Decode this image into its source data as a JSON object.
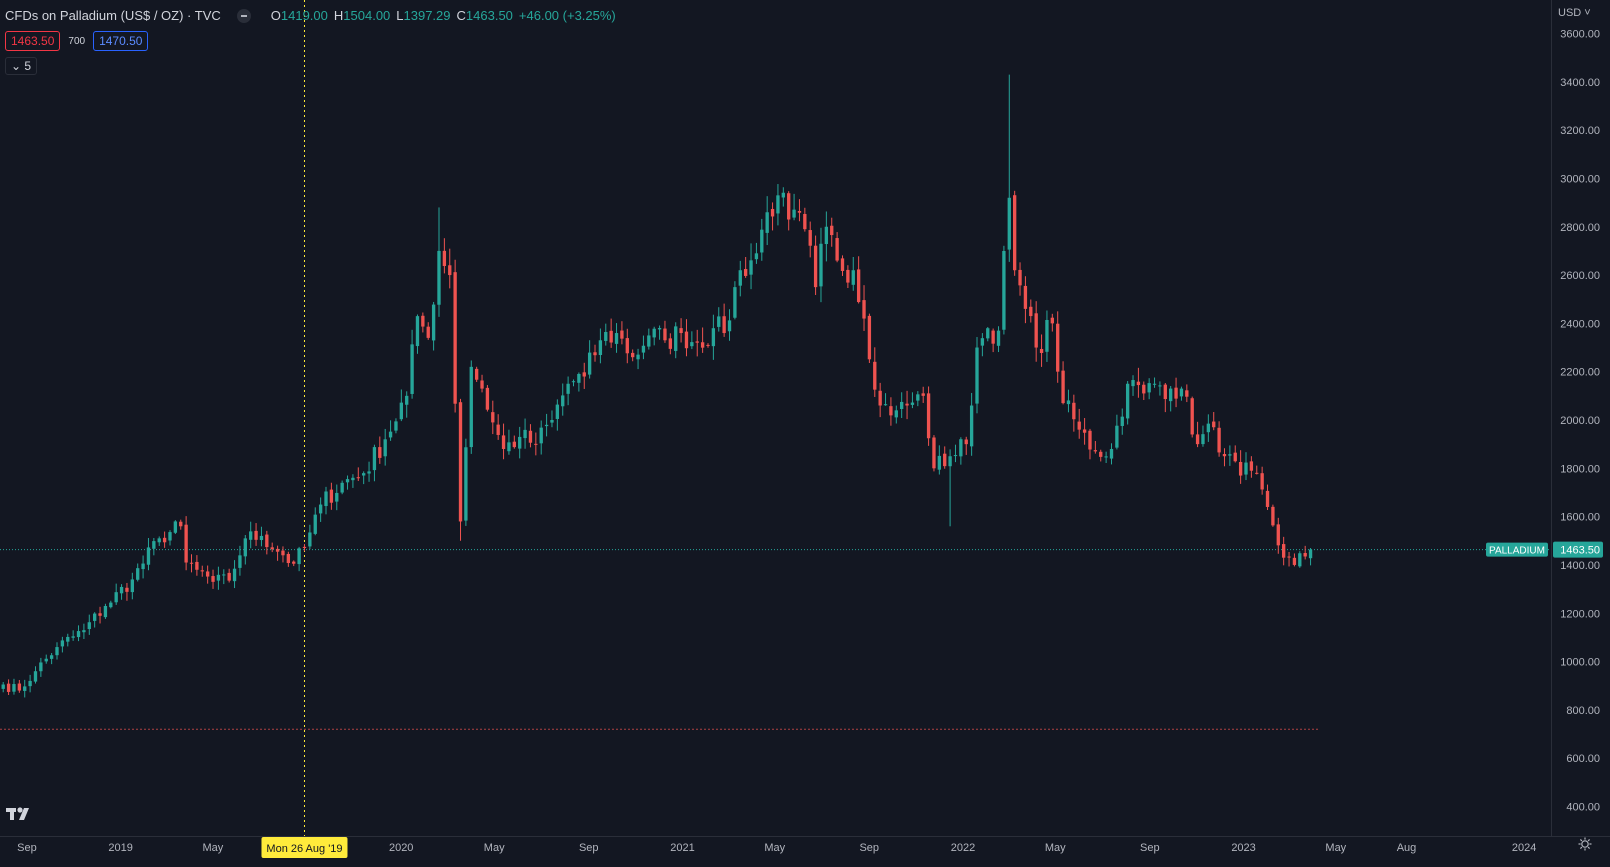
{
  "header": {
    "title": "CFDs on Palladium (US$ / OZ) · TVC",
    "ohlc": [
      {
        "key": "O",
        "value": "1419.00"
      },
      {
        "key": "H",
        "value": "1504.00"
      },
      {
        "key": "L",
        "value": "1397.29"
      },
      {
        "key": "C",
        "value": "1463.50"
      }
    ],
    "change": "+46.00 (+3.25%)",
    "sell_price": "1463.50",
    "spread": "700",
    "buy_price": "1470.50",
    "indicators_toggle": "5"
  },
  "price_axis": {
    "currency": "USD",
    "ticks": [
      "3600.00",
      "3400.00",
      "3200.00",
      "3000.00",
      "2800.00",
      "2600.00",
      "2400.00",
      "2200.00",
      "2000.00",
      "1800.00",
      "1600.00",
      "1400.00",
      "1200.00",
      "1000.00",
      "800.00",
      "600.00",
      "400.00"
    ]
  },
  "time_axis": {
    "labels": [
      "Sep",
      "2019",
      "May",
      "2020",
      "May",
      "Sep",
      "2021",
      "May",
      "Sep",
      "2022",
      "May",
      "Sep",
      "2023",
      "May",
      "Aug",
      "2024"
    ],
    "crosshair_label": "Mon 26 Aug '19"
  },
  "symbol_label": "PALLADIUM",
  "last_price_label": "1463.50",
  "colors": {
    "up": "#26a69a",
    "down": "#ef5350",
    "background": "#131722",
    "crosshair_label_bg": "#ffeb3b",
    "last_price_line": "#26a69a"
  },
  "chart_data": {
    "type": "candlestick",
    "title": "CFDs on Palladium (US$ / OZ) · TVC",
    "interval": "weekly",
    "ylim": [
      300,
      3700
    ],
    "y_ticks": [
      400,
      600,
      800,
      1000,
      1200,
      1400,
      1600,
      1800,
      2000,
      2200,
      2400,
      2600,
      2800,
      3000,
      3200,
      3400,
      3600
    ],
    "x_range": [
      "2018-07-28",
      "2024-02-05"
    ],
    "x_ticks": [
      {
        "label": "Sep",
        "date": "2018-09-01"
      },
      {
        "label": "2019",
        "date": "2019-01-01"
      },
      {
        "label": "May",
        "date": "2019-05-01"
      },
      {
        "label": "2020",
        "date": "2020-01-01"
      },
      {
        "label": "May",
        "date": "2020-05-01"
      },
      {
        "label": "Sep",
        "date": "2020-09-01"
      },
      {
        "label": "2021",
        "date": "2021-01-01"
      },
      {
        "label": "May",
        "date": "2021-05-01"
      },
      {
        "label": "Sep",
        "date": "2021-09-01"
      },
      {
        "label": "2022",
        "date": "2022-01-01"
      },
      {
        "label": "May",
        "date": "2022-05-01"
      },
      {
        "label": "Sep",
        "date": "2022-09-01"
      },
      {
        "label": "2023",
        "date": "2023-01-01"
      },
      {
        "label": "May",
        "date": "2023-05-01"
      },
      {
        "label": "Aug",
        "date": "2023-08-01"
      },
      {
        "label": "2024",
        "date": "2024-01-01"
      }
    ],
    "crosshair_date": "2019-08-26",
    "last_price": 1463.5,
    "buy_price": 1470.5,
    "alert_line": 720,
    "anchors": [
      {
        "date": "2018-07-30",
        "price": 905
      },
      {
        "date": "2018-08-20",
        "price": 880
      },
      {
        "date": "2018-09-10",
        "price": 960
      },
      {
        "date": "2018-10-08",
        "price": 1060
      },
      {
        "date": "2018-11-12",
        "price": 1130
      },
      {
        "date": "2018-12-10",
        "price": 1230
      },
      {
        "date": "2019-01-14",
        "price": 1340
      },
      {
        "date": "2019-02-18",
        "price": 1510
      },
      {
        "date": "2019-03-18",
        "price": 1560
      },
      {
        "date": "2019-03-25",
        "price": 1410
      },
      {
        "date": "2019-04-08",
        "price": 1380
      },
      {
        "date": "2019-04-29",
        "price": 1330
      },
      {
        "date": "2019-05-20",
        "price": 1335
      },
      {
        "date": "2019-06-10",
        "price": 1510
      },
      {
        "date": "2019-07-01",
        "price": 1520
      },
      {
        "date": "2019-07-29",
        "price": 1440
      },
      {
        "date": "2019-08-12",
        "price": 1405
      },
      {
        "date": "2019-08-26",
        "price": 1470
      },
      {
        "date": "2019-09-16",
        "price": 1650
      },
      {
        "date": "2019-10-14",
        "price": 1740
      },
      {
        "date": "2019-11-11",
        "price": 1780
      },
      {
        "date": "2019-12-09",
        "price": 1920
      },
      {
        "date": "2020-01-06",
        "price": 2100
      },
      {
        "date": "2020-01-20",
        "price": 2430
      },
      {
        "date": "2020-02-03",
        "price": 2340
      },
      {
        "date": "2020-02-17",
        "price": 2700
      },
      {
        "date": "2020-03-02",
        "price": 2600
      },
      {
        "date": "2020-03-16",
        "price": 1580
      },
      {
        "date": "2020-03-30",
        "price": 2220
      },
      {
        "date": "2020-04-13",
        "price": 2130
      },
      {
        "date": "2020-04-27",
        "price": 1990
      },
      {
        "date": "2020-05-11",
        "price": 1880
      },
      {
        "date": "2020-06-01",
        "price": 1930
      },
      {
        "date": "2020-06-22",
        "price": 1900
      },
      {
        "date": "2020-07-13",
        "price": 2000
      },
      {
        "date": "2020-08-03",
        "price": 2150
      },
      {
        "date": "2020-08-24",
        "price": 2180
      },
      {
        "date": "2020-09-14",
        "price": 2330
      },
      {
        "date": "2020-10-05",
        "price": 2360
      },
      {
        "date": "2020-10-26",
        "price": 2260
      },
      {
        "date": "2020-11-16",
        "price": 2350
      },
      {
        "date": "2020-12-07",
        "price": 2330
      },
      {
        "date": "2020-12-28",
        "price": 2360
      },
      {
        "date": "2021-01-18",
        "price": 2320
      },
      {
        "date": "2021-02-08",
        "price": 2380
      },
      {
        "date": "2021-02-22",
        "price": 2360
      },
      {
        "date": "2021-03-15",
        "price": 2620
      },
      {
        "date": "2021-04-05",
        "price": 2690
      },
      {
        "date": "2021-04-19",
        "price": 2860
      },
      {
        "date": "2021-05-03",
        "price": 2930
      },
      {
        "date": "2021-05-17",
        "price": 2830
      },
      {
        "date": "2021-06-07",
        "price": 2790
      },
      {
        "date": "2021-06-21",
        "price": 2550
      },
      {
        "date": "2021-07-05",
        "price": 2800
      },
      {
        "date": "2021-07-19",
        "price": 2660
      },
      {
        "date": "2021-08-09",
        "price": 2620
      },
      {
        "date": "2021-08-23",
        "price": 2420
      },
      {
        "date": "2021-09-13",
        "price": 2060
      },
      {
        "date": "2021-10-04",
        "price": 2040
      },
      {
        "date": "2021-10-18",
        "price": 2060
      },
      {
        "date": "2021-11-08",
        "price": 2100
      },
      {
        "date": "2021-11-22",
        "price": 1800
      },
      {
        "date": "2021-12-13",
        "price": 1850
      },
      {
        "date": "2022-01-03",
        "price": 1900
      },
      {
        "date": "2022-01-17",
        "price": 2300
      },
      {
        "date": "2022-01-31",
        "price": 2380
      },
      {
        "date": "2022-02-14",
        "price": 2370
      },
      {
        "date": "2022-02-28",
        "price": 2920
      },
      {
        "date": "2022-03-07",
        "price": 2620
      },
      {
        "date": "2022-03-21",
        "price": 2460
      },
      {
        "date": "2022-04-04",
        "price": 2300
      },
      {
        "date": "2022-04-25",
        "price": 2400
      },
      {
        "date": "2022-05-09",
        "price": 2070
      },
      {
        "date": "2022-05-30",
        "price": 1960
      },
      {
        "date": "2022-06-20",
        "price": 1870
      },
      {
        "date": "2022-07-11",
        "price": 1880
      },
      {
        "date": "2022-08-01",
        "price": 2150
      },
      {
        "date": "2022-08-22",
        "price": 2110
      },
      {
        "date": "2022-09-05",
        "price": 2150
      },
      {
        "date": "2022-09-26",
        "price": 2130
      },
      {
        "date": "2022-10-10",
        "price": 2130
      },
      {
        "date": "2022-10-31",
        "price": 1900
      },
      {
        "date": "2022-11-21",
        "price": 1970
      },
      {
        "date": "2022-12-05",
        "price": 1850
      },
      {
        "date": "2022-12-26",
        "price": 1770
      },
      {
        "date": "2023-01-09",
        "price": 1790
      },
      {
        "date": "2023-01-30",
        "price": 1640
      },
      {
        "date": "2023-02-20",
        "price": 1430
      },
      {
        "date": "2023-03-06",
        "price": 1400
      },
      {
        "date": "2023-03-27",
        "price": 1463.5
      }
    ]
  }
}
